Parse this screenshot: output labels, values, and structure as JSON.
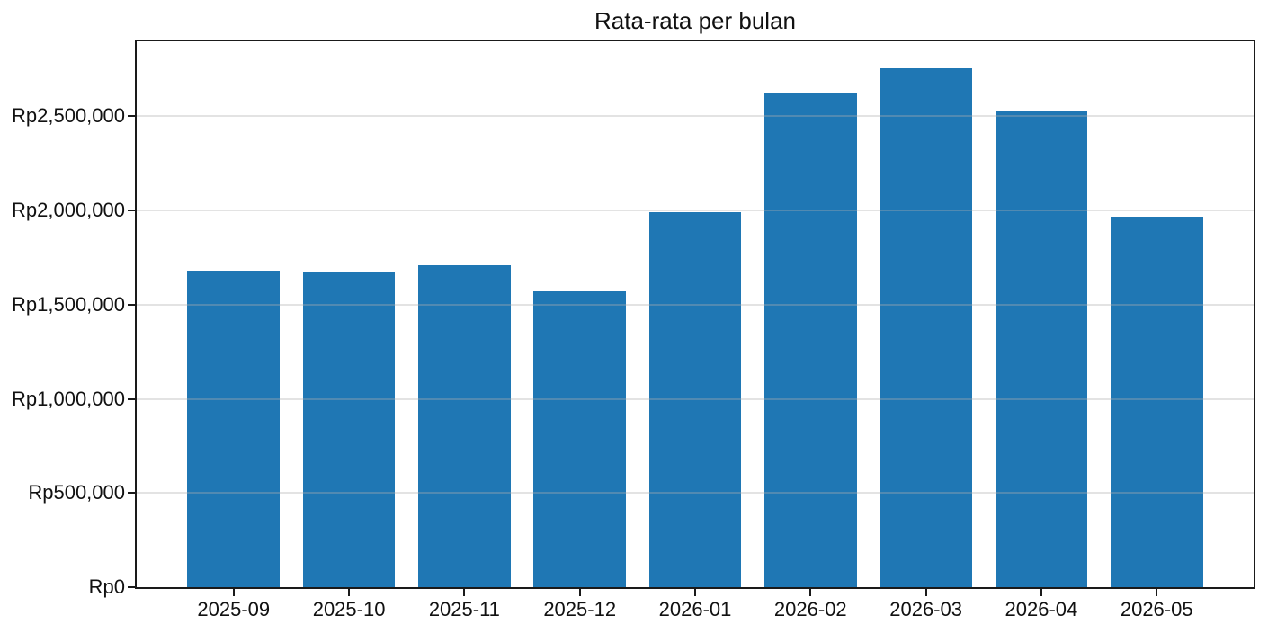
{
  "chart": {
    "title": "Rata-rata per bulan"
  },
  "chart_data": {
    "type": "bar",
    "title": "Rata-rata per bulan",
    "categories": [
      "2025-09",
      "2025-10",
      "2025-11",
      "2025-12",
      "2026-01",
      "2026-02",
      "2026-03",
      "2026-04",
      "2026-05"
    ],
    "values": [
      1682000,
      1677000,
      1708000,
      1573000,
      1989000,
      2628000,
      2756000,
      2529000,
      1965000
    ],
    "xlabel": "",
    "ylabel": "",
    "ylim": [
      0,
      2898000
    ],
    "y_ticks": [
      {
        "value": 0,
        "label": "Rp0"
      },
      {
        "value": 500000,
        "label": "Rp500,000"
      },
      {
        "value": 1000000,
        "label": "Rp1,000,000"
      },
      {
        "value": 1500000,
        "label": "Rp1,500,000"
      },
      {
        "value": 2000000,
        "label": "Rp2,000,000"
      },
      {
        "value": 2500000,
        "label": "Rp2,500,000"
      }
    ],
    "grid": "y-only, drawn above bars",
    "legend_position": "none",
    "bar_color": "#1f77b4",
    "grid_color": "#b0b0b0",
    "grid_opacity": 0.35,
    "spine_color": "#1a1a1a",
    "text_color": "#111111",
    "currency_prefix": "Rp"
  }
}
